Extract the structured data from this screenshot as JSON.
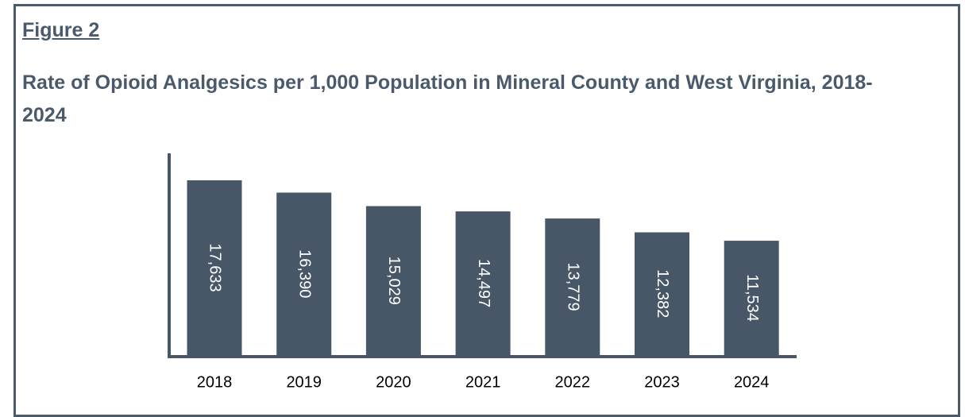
{
  "figure_label": "Figure 2",
  "chart_data": {
    "type": "bar",
    "title": "Rate of Opioid Analgesics per 1,000 Population in Mineral County and West Virginia, 2018-2024",
    "categories": [
      "2018",
      "2019",
      "2020",
      "2021",
      "2022",
      "2023",
      "2024"
    ],
    "values": [
      17633,
      16390,
      15029,
      14497,
      13779,
      12382,
      11534
    ],
    "value_labels": [
      "17,633",
      "16,390",
      "15,029",
      "14,497",
      "13,779",
      "12,382",
      "11,534"
    ],
    "color": "#475768"
  }
}
